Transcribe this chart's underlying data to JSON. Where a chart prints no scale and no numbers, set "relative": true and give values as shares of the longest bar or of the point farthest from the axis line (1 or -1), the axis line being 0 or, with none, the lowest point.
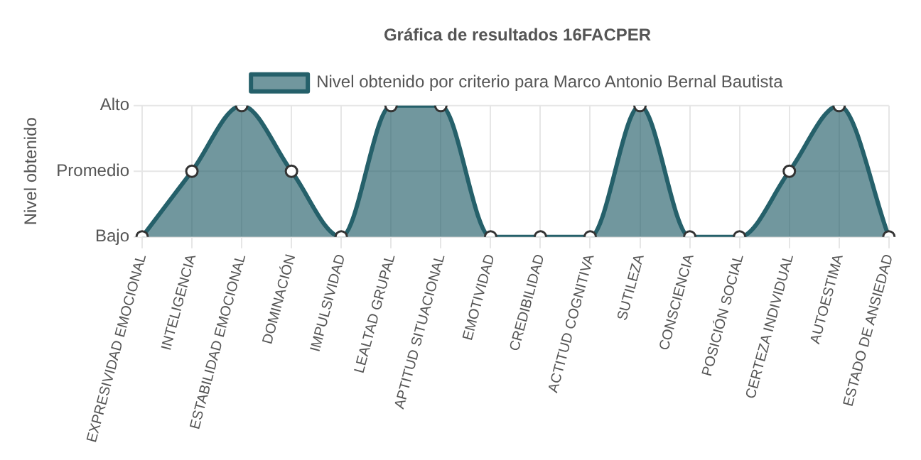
{
  "chart_data": {
    "type": "area",
    "title": "Gráfica de resultados 16FACPER",
    "ylabel": "Nivel obtenido",
    "relative": true,
    "categories": [
      "EXPRESIVIDAD EMOCIONAL",
      "INTELIGENCIA",
      "ESTABILIDAD EMOCIONAL",
      "DOMINACIÓN",
      "IMPULSIVIDAD",
      "LEALTAD GRUPAL",
      "APTITUD SITUACIONAL",
      "EMOTIVIDAD",
      "CREDIBILIDAD",
      "ACTITUD COGNITIVA",
      "SUTILEZA",
      "CONSCIENCIA",
      "POSICIÓN SOCIAL",
      "CERTEZA INDIVIDUAL",
      "AUTOESTIMA",
      "ESTADO DE ANSIEDAD"
    ],
    "series": [
      {
        "name": "Nivel obtenido por criterio para Marco Antonio Bernal Bautista",
        "color": "#25606a",
        "values": [
          0,
          0.5,
          1,
          0.5,
          0,
          1,
          1,
          0,
          0,
          0,
          1,
          0,
          0,
          0.5,
          1,
          0
        ]
      }
    ],
    "annotations": [
      "Bajo",
      "Promedio",
      "Alto"
    ],
    "grid": true,
    "legend": "top",
    "marker": "circle"
  }
}
